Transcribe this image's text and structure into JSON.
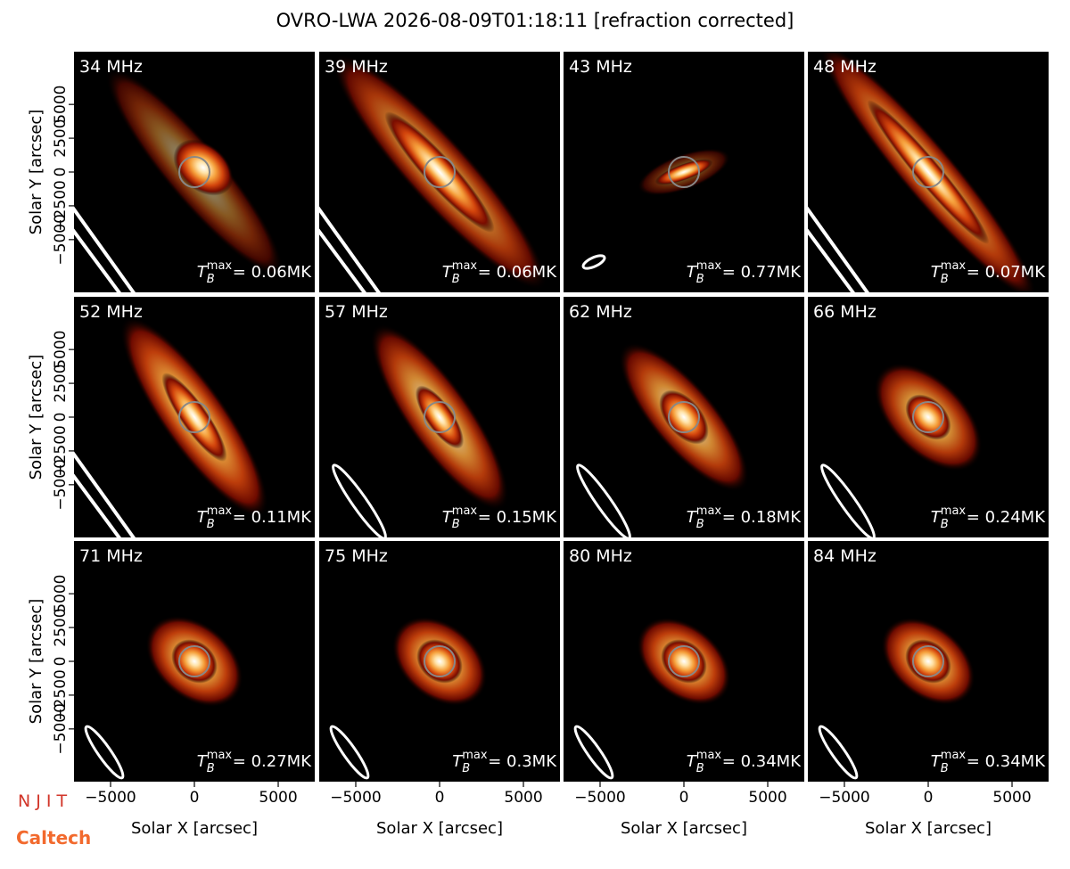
{
  "title": "OVRO-LWA 2026-08-09T01:18:11 [refraction corrected]",
  "axes": {
    "xlabel": "Solar X [arcsec]",
    "ylabel": "Solar Y [arcsec]",
    "xlim": [
      -7180,
      7180
    ],
    "ylim": [
      -8900,
      8900
    ],
    "xticks": [
      {
        "value": -5000,
        "label": "−5000"
      },
      0,
      5000
    ],
    "yticks": [
      {
        "value": -5000,
        "label": "−5000"
      },
      {
        "value": -2500,
        "label": "−2500"
      },
      0,
      2500,
      5000
    ]
  },
  "tb_symbol": {
    "base": "T",
    "sub": "B",
    "sup": "max"
  },
  "logos": {
    "njit": "N J I T",
    "caltech": "Caltech"
  },
  "chart_data": [
    {
      "type": "image",
      "title": "34 MHz",
      "annotation": "= 0.06MK"
    },
    {
      "type": "image",
      "title": "39 MHz",
      "annotation": "= 0.06MK"
    },
    {
      "type": "image",
      "title": "43 MHz",
      "annotation": "= 0.77MK"
    },
    {
      "type": "image",
      "title": "48 MHz",
      "annotation": "= 0.07MK"
    },
    {
      "type": "image",
      "title": "52 MHz",
      "annotation": "= 0.11MK"
    },
    {
      "type": "image",
      "title": "57 MHz",
      "annotation": "= 0.15MK"
    },
    {
      "type": "image",
      "title": "62 MHz",
      "annotation": "= 0.18MK"
    },
    {
      "type": "image",
      "title": "66 MHz",
      "annotation": "= 0.24MK"
    },
    {
      "type": "image",
      "title": "71 MHz",
      "annotation": "= 0.27MK"
    },
    {
      "type": "image",
      "title": "75 MHz",
      "annotation": "= 0.3MK"
    },
    {
      "type": "image",
      "title": "80 MHz",
      "annotation": "= 0.34MK"
    },
    {
      "type": "image",
      "title": "84 MHz",
      "annotation": "= 0.34MK"
    }
  ]
}
